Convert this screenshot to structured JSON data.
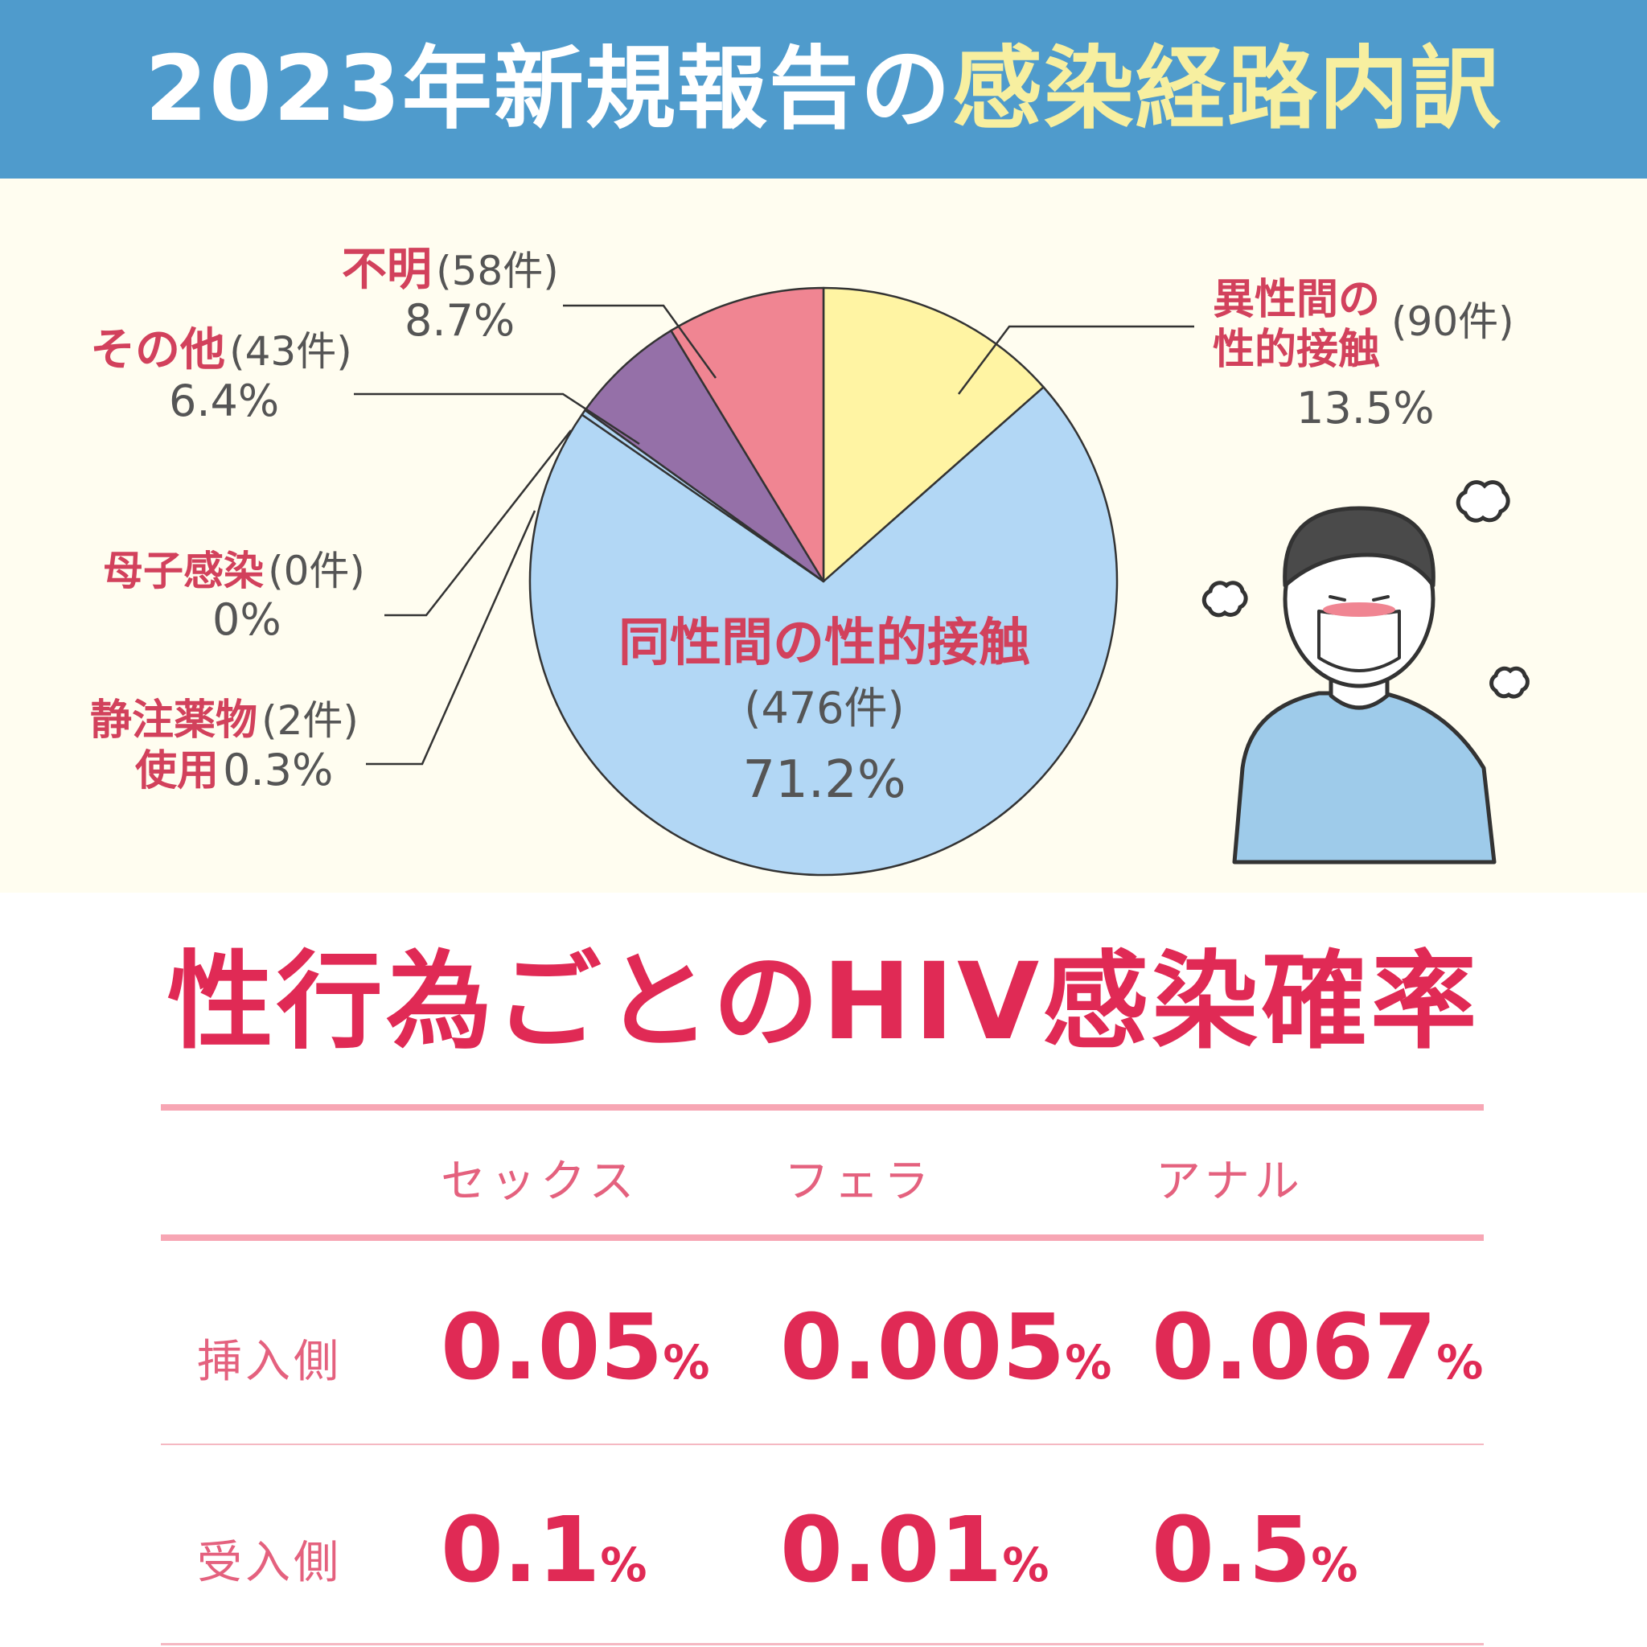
{
  "header": {
    "title_white": "2023年新規報告の",
    "title_yellow": "感染経路内訳"
  },
  "chart_data": {
    "type": "pie",
    "slices": [
      {
        "label": "異性間の性的接触",
        "label_line1": "異性間の",
        "label_line2": "性的接触",
        "count_text": "(90件)",
        "value": 13.5,
        "pct_text": "13.5%",
        "color": "#fff4a3"
      },
      {
        "label": "同性間の性的接触",
        "count_text": "(476件)",
        "value": 71.2,
        "pct_text": "71.2%",
        "color": "#b2d7f5"
      },
      {
        "label": "静注薬物使用",
        "label_line1": "静注薬物",
        "label_line2": "使用",
        "count_text": "(2件)",
        "value": 0.3,
        "pct_text": "0.3%",
        "color": "#b2d7f5"
      },
      {
        "label": "母子感染",
        "count_text": "(0件)",
        "value": 0,
        "pct_text": "0%",
        "color": "#b2d7f5"
      },
      {
        "label": "その他",
        "count_text": "(43件)",
        "value": 6.4,
        "pct_text": "6.4%",
        "color": "#9570a8"
      },
      {
        "label": "不明",
        "count_text": "(58件)",
        "value": 8.7,
        "pct_text": "8.7%",
        "color": "#f08592"
      }
    ]
  },
  "risk": {
    "title": "性行為ごとのHIV感染確率",
    "columns": [
      "セックス",
      "フェラ",
      "アナル"
    ],
    "unit": "%",
    "rows": [
      {
        "label": "挿入側",
        "values": [
          "0.05",
          "0.005",
          "0.067"
        ]
      },
      {
        "label": "受入側",
        "values": [
          "0.1",
          "0.01",
          "0.5"
        ]
      }
    ]
  }
}
